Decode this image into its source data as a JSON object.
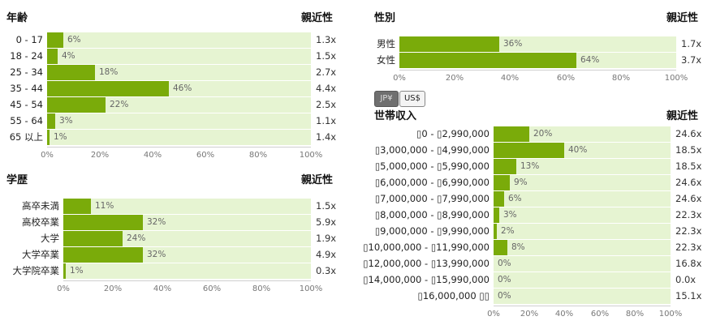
{
  "currency": {
    "options": [
      "JP¥",
      "US$"
    ],
    "selected": "JP¥"
  },
  "axis_ticks": [
    "0%",
    "20%",
    "40%",
    "60%",
    "80%",
    "100%"
  ],
  "colors": {
    "bar": "#7aab0a",
    "track": "#e6f4d2"
  },
  "panels": {
    "age": {
      "title": "年齢",
      "affinity_header": "親近性",
      "rows": [
        {
          "label": "0 - 17",
          "percent": 6,
          "percent_label": "6%",
          "affinity": "1.3x"
        },
        {
          "label": "18 - 24",
          "percent": 4,
          "percent_label": "4%",
          "affinity": "1.5x"
        },
        {
          "label": "25 - 34",
          "percent": 18,
          "percent_label": "18%",
          "affinity": "2.7x"
        },
        {
          "label": "35 - 44",
          "percent": 46,
          "percent_label": "46%",
          "affinity": "4.4x"
        },
        {
          "label": "45 - 54",
          "percent": 22,
          "percent_label": "22%",
          "affinity": "2.5x"
        },
        {
          "label": "55 - 64",
          "percent": 3,
          "percent_label": "3%",
          "affinity": "1.1x"
        },
        {
          "label": "65 以上",
          "percent": 1,
          "percent_label": "1%",
          "affinity": "1.4x"
        }
      ]
    },
    "education": {
      "title": "学歴",
      "affinity_header": "親近性",
      "rows": [
        {
          "label": "高卒未満",
          "percent": 11,
          "percent_label": "11%",
          "affinity": "1.5x"
        },
        {
          "label": "高校卒業",
          "percent": 32,
          "percent_label": "32%",
          "affinity": "5.9x"
        },
        {
          "label": "大学",
          "percent": 24,
          "percent_label": "24%",
          "affinity": "1.9x"
        },
        {
          "label": "大学卒業",
          "percent": 32,
          "percent_label": "32%",
          "affinity": "4.9x"
        },
        {
          "label": "大学院卒業",
          "percent": 1,
          "percent_label": "1%",
          "affinity": "0.3x"
        }
      ]
    },
    "gender": {
      "title": "性別",
      "affinity_header": "親近性",
      "rows": [
        {
          "label": "男性",
          "percent": 36,
          "percent_label": "36%",
          "affinity": "1.7x"
        },
        {
          "label": "女性",
          "percent": 64,
          "percent_label": "64%",
          "affinity": "3.7x"
        }
      ]
    },
    "income": {
      "title": "世帯収入",
      "affinity_header": "親近性",
      "rows": [
        {
          "label": "▯0 - ▯2,990,000",
          "percent": 20,
          "percent_label": "20%",
          "affinity": "24.6x"
        },
        {
          "label": "▯3,000,000 - ▯4,990,000",
          "percent": 40,
          "percent_label": "40%",
          "affinity": "18.5x"
        },
        {
          "label": "▯5,000,000 - ▯5,990,000",
          "percent": 13,
          "percent_label": "13%",
          "affinity": "18.5x"
        },
        {
          "label": "▯6,000,000 - ▯6,990,000",
          "percent": 9,
          "percent_label": "9%",
          "affinity": "24.6x"
        },
        {
          "label": "▯7,000,000 - ▯7,990,000",
          "percent": 6,
          "percent_label": "6%",
          "affinity": "24.6x"
        },
        {
          "label": "▯8,000,000 - ▯8,990,000",
          "percent": 3,
          "percent_label": "3%",
          "affinity": "22.3x"
        },
        {
          "label": "▯9,000,000 - ▯9,990,000",
          "percent": 2,
          "percent_label": "2%",
          "affinity": "22.3x"
        },
        {
          "label": "▯10,000,000 - ▯11,990,000",
          "percent": 8,
          "percent_label": "8%",
          "affinity": "22.3x"
        },
        {
          "label": "▯12,000,000 - ▯13,990,000",
          "percent": 0,
          "percent_label": "0%",
          "affinity": "16.8x"
        },
        {
          "label": "▯14,000,000 - ▯15,990,000",
          "percent": 0,
          "percent_label": "0%",
          "affinity": "0.0x"
        },
        {
          "label": "▯16,000,000 ▯▯",
          "percent": 0,
          "percent_label": "0%",
          "affinity": "15.1x"
        }
      ]
    }
  }
}
